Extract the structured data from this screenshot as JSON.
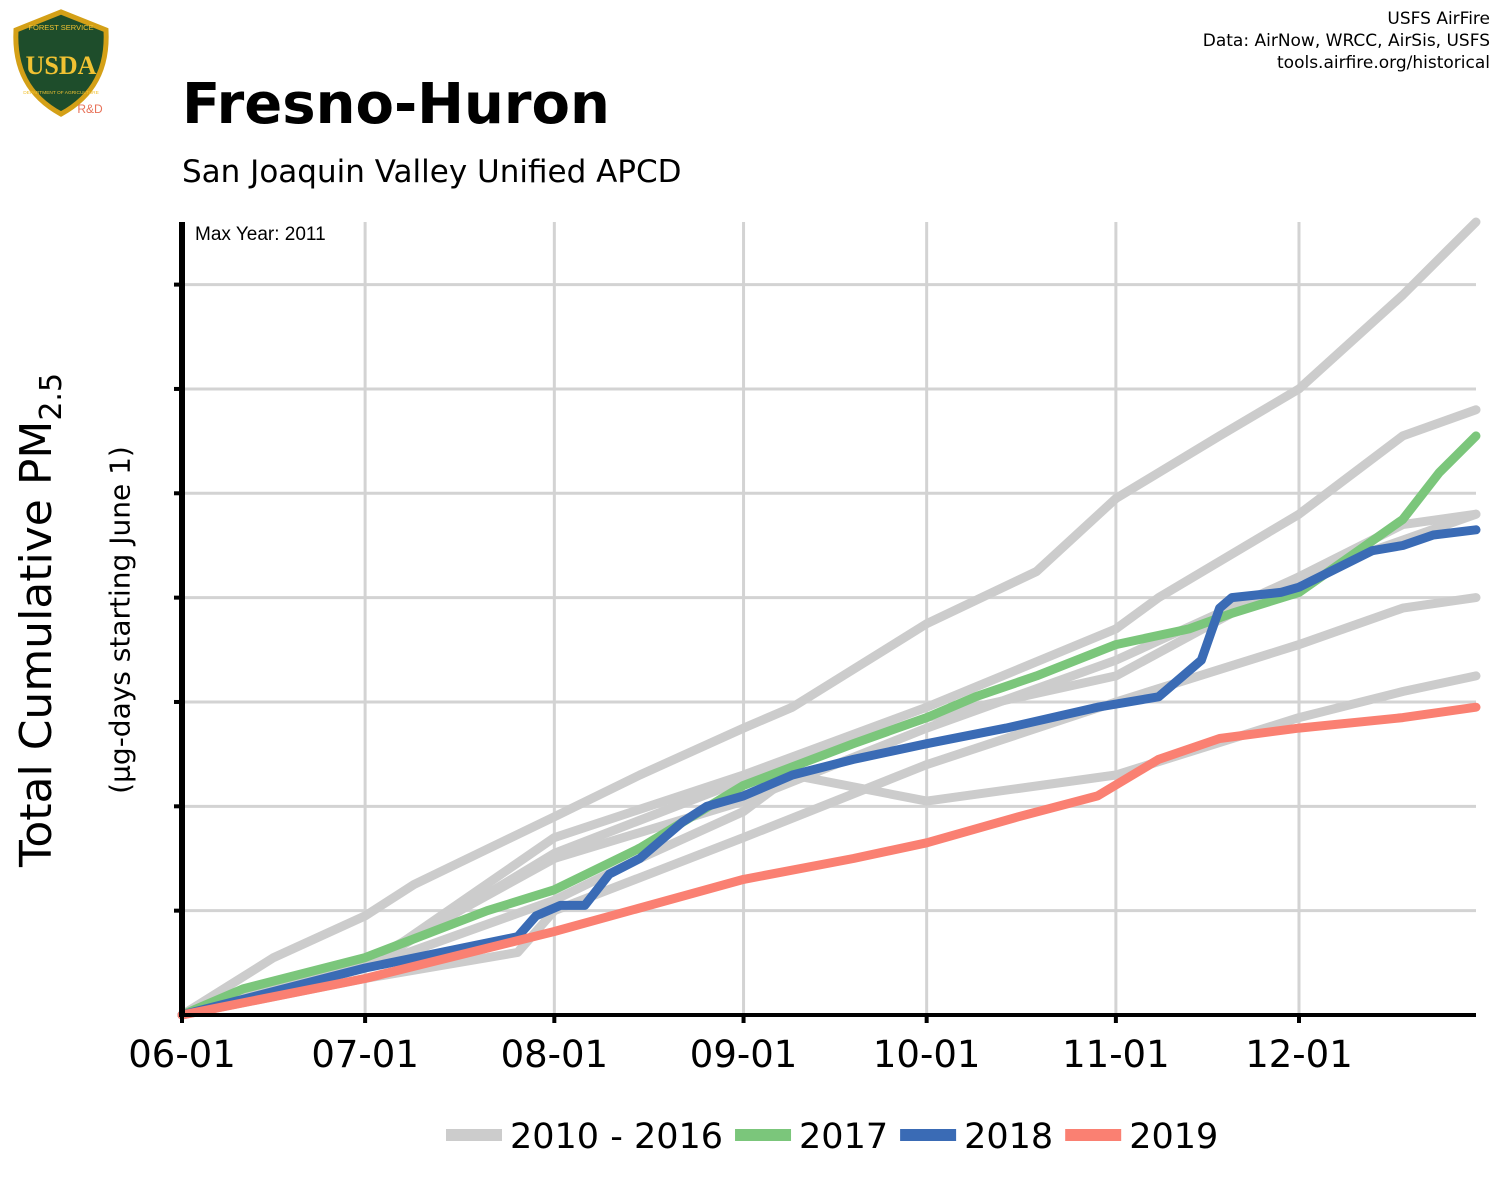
{
  "header": {
    "title": "Fresno-Huron",
    "subtitle": "San Joaquin Valley Unified APCD",
    "credits": [
      "USFS AirFire",
      "Data: AirNow, WRCC, AirSis, USFS",
      "tools.airfire.org/historical"
    ]
  },
  "logo": {
    "text_top": "FOREST SERVICE",
    "text_main": "USDA",
    "text_bottom": "DEPARTMENT OF AGRICULTURE",
    "text_rd": "R&D",
    "colors": {
      "shield": "#1e4d2b",
      "border": "#d4a017",
      "text": "#f1c232",
      "rd": "#e8735a"
    }
  },
  "chart_data": {
    "type": "line",
    "annotation": "Max Year: 2011",
    "ylabel": "Total Cumulative PM",
    "ylabel_subscript": "2.5",
    "ylabel_secondary": "(µg-days starting June 1)",
    "x_tick_labels": [
      "06-01",
      "07-01",
      "08-01",
      "09-01",
      "10-01",
      "11-01",
      "12-01"
    ],
    "x_tick_days": [
      0,
      30,
      61,
      92,
      122,
      153,
      183
    ],
    "xlim": [
      0,
      212
    ],
    "ylim": [
      0,
      7.6
    ],
    "y_gridlines": [
      1,
      2,
      3,
      4,
      5,
      6,
      7
    ],
    "grid": true,
    "legend_position": "bottom",
    "legend": [
      {
        "label": "2010 - 2016",
        "color": "#cccccc"
      },
      {
        "label": "2017",
        "color": "#7bc67b"
      },
      {
        "label": "2018",
        "color": "#3a6bb5"
      },
      {
        "label": "2019",
        "color": "#fa8072"
      }
    ],
    "series": [
      {
        "label": "2011",
        "color": "#cccccc",
        "x": [
          0,
          15,
          30,
          38,
          61,
          75,
          92,
          100,
          122,
          140,
          153,
          170,
          183,
          200,
          212
        ],
        "y": [
          0,
          0.55,
          0.95,
          1.25,
          1.9,
          2.3,
          2.75,
          2.95,
          3.75,
          4.25,
          4.95,
          5.55,
          6.0,
          6.9,
          7.6
        ]
      },
      {
        "label": "2010-2016 b",
        "color": "#cccccc",
        "x": [
          0,
          30,
          61,
          92,
          122,
          153,
          160,
          183,
          200,
          212
        ],
        "y": [
          0,
          0.45,
          1.7,
          2.3,
          2.95,
          3.7,
          4.0,
          4.8,
          5.55,
          5.8
        ]
      },
      {
        "label": "2010-2016 c",
        "color": "#cccccc",
        "x": [
          0,
          30,
          61,
          92,
          122,
          153,
          183,
          200,
          212
        ],
        "y": [
          0,
          0.45,
          1.55,
          2.25,
          2.85,
          3.25,
          4.2,
          4.7,
          4.8
        ]
      },
      {
        "label": "2010-2016 d",
        "color": "#cccccc",
        "x": [
          0,
          30,
          55,
          61,
          92,
          122,
          153,
          183,
          200,
          212
        ],
        "y": [
          0,
          0.35,
          0.6,
          1.0,
          1.7,
          2.4,
          3.0,
          3.55,
          3.9,
          4.0
        ]
      },
      {
        "label": "2010-2016 e",
        "color": "#cccccc",
        "x": [
          0,
          30,
          61,
          75,
          92,
          100,
          122,
          153,
          183,
          200,
          212
        ],
        "y": [
          0,
          0.45,
          1.1,
          1.5,
          1.95,
          2.3,
          2.05,
          2.3,
          2.85,
          3.1,
          3.25
        ]
      },
      {
        "label": "2010-2016 f",
        "color": "#cccccc",
        "x": [
          0,
          30,
          61,
          92,
          122,
          153,
          183,
          212
        ],
        "y": [
          0,
          0.5,
          1.5,
          2.05,
          2.75,
          3.4,
          4.2,
          4.8
        ]
      },
      {
        "label": "2017",
        "color": "#7bc67b",
        "x": [
          0,
          10,
          30,
          50,
          61,
          75,
          92,
          110,
          122,
          130,
          140,
          153,
          165,
          172,
          183,
          200,
          206,
          212
        ],
        "y": [
          0,
          0.25,
          0.55,
          1.0,
          1.2,
          1.6,
          2.2,
          2.6,
          2.85,
          3.05,
          3.25,
          3.55,
          3.7,
          3.85,
          4.05,
          4.75,
          5.2,
          5.55
        ]
      },
      {
        "label": "2018",
        "color": "#3a6bb5",
        "x": [
          0,
          30,
          55,
          58,
          62,
          66,
          70,
          75,
          82,
          86,
          92,
          100,
          110,
          122,
          135,
          150,
          160,
          167,
          170,
          172,
          180,
          183,
          195,
          200,
          205,
          212
        ],
        "y": [
          0,
          0.45,
          0.75,
          0.95,
          1.05,
          1.05,
          1.35,
          1.5,
          1.85,
          2.0,
          2.1,
          2.3,
          2.45,
          2.6,
          2.75,
          2.95,
          3.05,
          3.4,
          3.9,
          4.0,
          4.05,
          4.1,
          4.45,
          4.5,
          4.6,
          4.65
        ]
      },
      {
        "label": "2019",
        "color": "#fa8072",
        "x": [
          0,
          30,
          61,
          92,
          110,
          122,
          137,
          150,
          160,
          170,
          183,
          200,
          212
        ],
        "y": [
          0,
          0.35,
          0.8,
          1.3,
          1.5,
          1.65,
          1.9,
          2.1,
          2.45,
          2.65,
          2.75,
          2.85,
          2.95
        ]
      }
    ]
  }
}
